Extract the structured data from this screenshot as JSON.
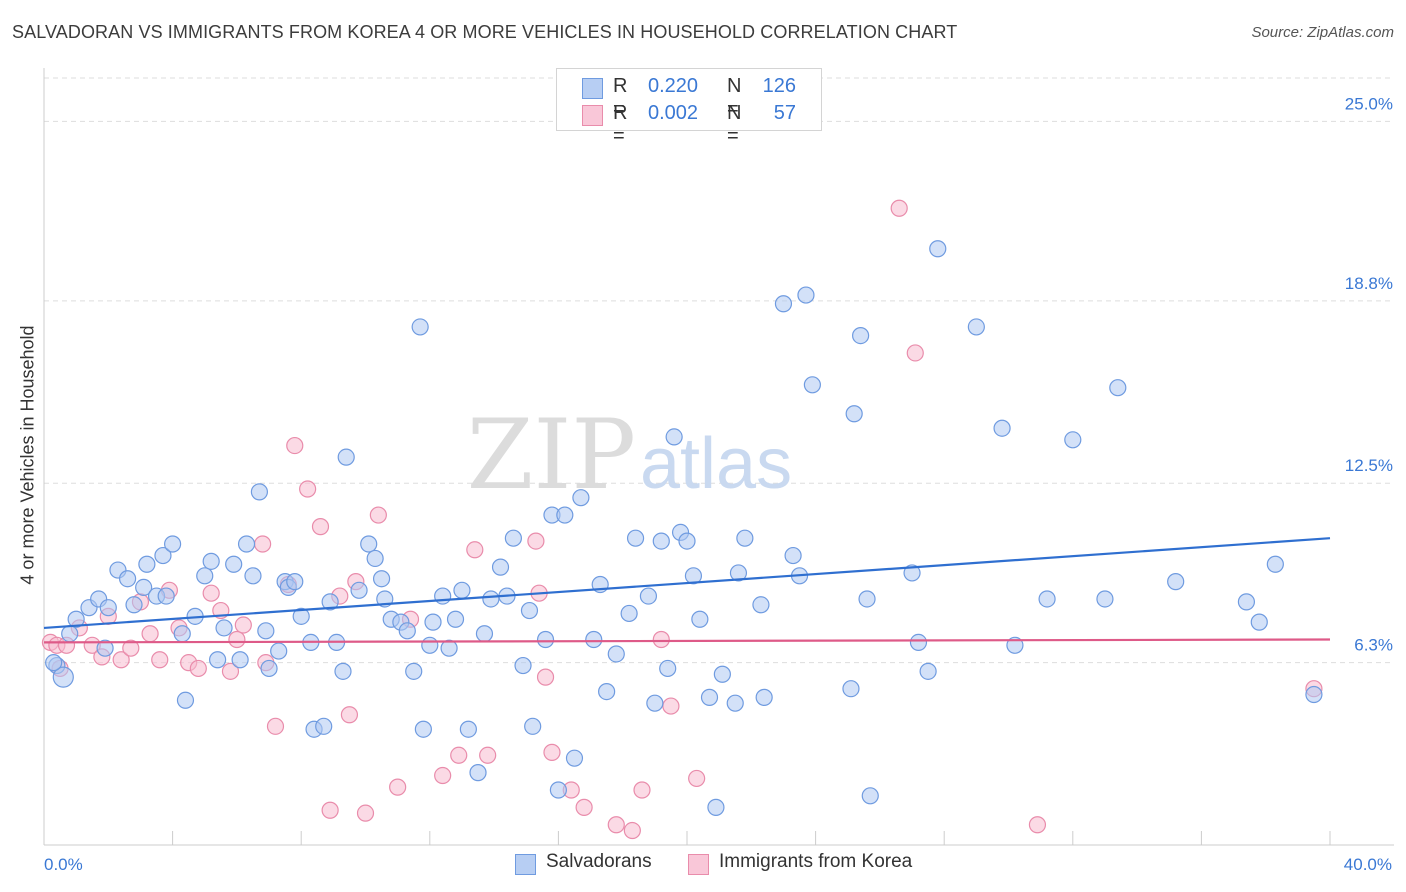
{
  "header": {
    "title": "SALVADORAN VS IMMIGRANTS FROM KOREA 4 OR MORE VEHICLES IN HOUSEHOLD CORRELATION CHART",
    "source": "Source: ZipAtlas.com"
  },
  "legend": {
    "r_label": "R =",
    "n_label": "N =",
    "salvadoran": {
      "r": "0.220",
      "n": "126"
    },
    "korea": {
      "r": "0.002",
      "n": "57"
    }
  },
  "watermark": {
    "zip": "ZIP",
    "atlas": "atlas"
  },
  "colors": {
    "salvadoran_fill": "#aec8f2",
    "salvadoran_stroke": "#6f9be0",
    "salvadoran_line": "#2f6fd0",
    "korea_fill": "#f7bcd0",
    "korea_stroke": "#e98cab",
    "korea_line": "#de5a88",
    "axis_text": "#3a78d4"
  },
  "chart_data": {
    "type": "scatter",
    "title": "SALVADORAN VS IMMIGRANTS FROM KOREA 4 OR MORE VEHICLES IN HOUSEHOLD CORRELATION CHART",
    "xlabel": "",
    "ylabel": "4 or more Vehicles in Household",
    "xlim": [
      0,
      40
    ],
    "ylim": [
      0,
      26.5
    ],
    "x_tick_labels": [
      {
        "value": 0,
        "label": "0.0%"
      },
      {
        "value": 40,
        "label": "40.0%"
      }
    ],
    "y_tick_labels": [
      {
        "value": 6.3,
        "label": "6.3%"
      },
      {
        "value": 12.5,
        "label": "12.5%"
      },
      {
        "value": 18.8,
        "label": "18.8%"
      },
      {
        "value": 25.0,
        "label": "25.0%"
      }
    ],
    "grid": true,
    "legend_position": "top-center",
    "series": [
      {
        "name": "Salvadorans",
        "r": 0.22,
        "n": 126,
        "trend": {
          "x": [
            0,
            40
          ],
          "y": [
            7.5,
            10.6
          ]
        },
        "points": [
          [
            0.4,
            6.2
          ],
          [
            0.6,
            5.8
          ],
          [
            0.3,
            6.3
          ],
          [
            0.8,
            7.3
          ],
          [
            1.0,
            7.8
          ],
          [
            1.4,
            8.2
          ],
          [
            1.7,
            8.5
          ],
          [
            1.9,
            6.8
          ],
          [
            2.0,
            8.2
          ],
          [
            2.3,
            9.5
          ],
          [
            2.6,
            9.2
          ],
          [
            2.8,
            8.3
          ],
          [
            3.1,
            8.9
          ],
          [
            3.2,
            9.7
          ],
          [
            3.5,
            8.6
          ],
          [
            3.7,
            10.0
          ],
          [
            3.8,
            8.6
          ],
          [
            4.0,
            10.4
          ],
          [
            4.3,
            7.3
          ],
          [
            4.4,
            5.0
          ],
          [
            4.7,
            7.9
          ],
          [
            5.0,
            9.3
          ],
          [
            5.2,
            9.8
          ],
          [
            5.4,
            6.4
          ],
          [
            5.6,
            7.5
          ],
          [
            5.9,
            9.7
          ],
          [
            6.1,
            6.4
          ],
          [
            6.3,
            10.4
          ],
          [
            6.5,
            9.3
          ],
          [
            6.7,
            12.2
          ],
          [
            6.9,
            7.4
          ],
          [
            7.0,
            6.1
          ],
          [
            7.3,
            6.7
          ],
          [
            7.5,
            9.1
          ],
          [
            7.6,
            8.9
          ],
          [
            7.8,
            9.1
          ],
          [
            8.0,
            7.9
          ],
          [
            8.3,
            7.0
          ],
          [
            8.4,
            4.0
          ],
          [
            8.7,
            4.1
          ],
          [
            8.9,
            8.4
          ],
          [
            9.1,
            7.0
          ],
          [
            9.3,
            6.0
          ],
          [
            9.4,
            13.4
          ],
          [
            9.8,
            8.8
          ],
          [
            10.1,
            10.4
          ],
          [
            10.3,
            9.9
          ],
          [
            10.5,
            9.2
          ],
          [
            10.6,
            8.5
          ],
          [
            10.8,
            7.8
          ],
          [
            11.1,
            7.7
          ],
          [
            11.3,
            7.4
          ],
          [
            11.5,
            6.0
          ],
          [
            11.7,
            17.9
          ],
          [
            11.8,
            4.0
          ],
          [
            12.0,
            6.9
          ],
          [
            12.1,
            7.7
          ],
          [
            12.4,
            8.6
          ],
          [
            12.6,
            6.8
          ],
          [
            12.8,
            7.8
          ],
          [
            13.0,
            8.8
          ],
          [
            13.2,
            4.0
          ],
          [
            13.5,
            2.5
          ],
          [
            13.7,
            7.3
          ],
          [
            13.9,
            8.5
          ],
          [
            14.2,
            9.6
          ],
          [
            14.4,
            8.6
          ],
          [
            14.6,
            10.6
          ],
          [
            14.9,
            6.2
          ],
          [
            15.1,
            8.1
          ],
          [
            15.2,
            4.1
          ],
          [
            15.6,
            7.1
          ],
          [
            15.8,
            11.4
          ],
          [
            16.0,
            1.9
          ],
          [
            16.2,
            11.4
          ],
          [
            16.5,
            3.0
          ],
          [
            16.7,
            12.0
          ],
          [
            17.1,
            7.1
          ],
          [
            17.3,
            9.0
          ],
          [
            17.5,
            5.3
          ],
          [
            17.8,
            6.6
          ],
          [
            18.2,
            8.0
          ],
          [
            18.4,
            10.6
          ],
          [
            18.8,
            8.6
          ],
          [
            19.0,
            4.9
          ],
          [
            19.2,
            10.5
          ],
          [
            19.4,
            6.1
          ],
          [
            19.6,
            14.1
          ],
          [
            19.8,
            10.8
          ],
          [
            20.0,
            10.5
          ],
          [
            20.2,
            9.3
          ],
          [
            20.4,
            7.8
          ],
          [
            20.7,
            5.1
          ],
          [
            20.9,
            1.3
          ],
          [
            21.1,
            5.9
          ],
          [
            21.5,
            4.9
          ],
          [
            21.6,
            9.4
          ],
          [
            21.8,
            10.6
          ],
          [
            22.3,
            8.3
          ],
          [
            22.4,
            5.1
          ],
          [
            23.0,
            18.7
          ],
          [
            23.3,
            10.0
          ],
          [
            23.5,
            9.3
          ],
          [
            23.7,
            19.0
          ],
          [
            23.9,
            15.9
          ],
          [
            25.1,
            5.4
          ],
          [
            25.2,
            14.9
          ],
          [
            25.4,
            17.6
          ],
          [
            25.6,
            8.5
          ],
          [
            25.7,
            1.7
          ],
          [
            27.0,
            9.4
          ],
          [
            27.2,
            7.0
          ],
          [
            27.5,
            6.0
          ],
          [
            27.8,
            20.6
          ],
          [
            29.0,
            17.9
          ],
          [
            29.8,
            14.4
          ],
          [
            30.2,
            6.9
          ],
          [
            31.2,
            8.5
          ],
          [
            32.0,
            14.0
          ],
          [
            33.0,
            8.5
          ],
          [
            33.4,
            15.8
          ],
          [
            35.2,
            9.1
          ],
          [
            37.4,
            8.4
          ],
          [
            37.8,
            7.7
          ],
          [
            38.3,
            9.7
          ],
          [
            39.5,
            5.2
          ]
        ]
      },
      {
        "name": "Immigrants from Korea",
        "r": 0.002,
        "n": 57,
        "trend": {
          "x": [
            0,
            40
          ],
          "y": [
            7.0,
            7.1
          ]
        },
        "points": [
          [
            0.2,
            7.0
          ],
          [
            0.4,
            6.9
          ],
          [
            0.5,
            6.1
          ],
          [
            0.7,
            6.9
          ],
          [
            1.1,
            7.5
          ],
          [
            1.5,
            6.9
          ],
          [
            1.8,
            6.5
          ],
          [
            2.0,
            7.9
          ],
          [
            2.4,
            6.4
          ],
          [
            2.7,
            6.8
          ],
          [
            3.0,
            8.4
          ],
          [
            3.3,
            7.3
          ],
          [
            3.6,
            6.4
          ],
          [
            3.9,
            8.8
          ],
          [
            4.2,
            7.5
          ],
          [
            4.5,
            6.3
          ],
          [
            4.8,
            6.1
          ],
          [
            5.2,
            8.7
          ],
          [
            5.5,
            8.1
          ],
          [
            5.8,
            6.0
          ],
          [
            6.0,
            7.1
          ],
          [
            6.2,
            7.6
          ],
          [
            6.8,
            10.4
          ],
          [
            6.9,
            6.3
          ],
          [
            7.2,
            4.1
          ],
          [
            7.6,
            9.0
          ],
          [
            7.8,
            13.8
          ],
          [
            8.2,
            12.3
          ],
          [
            8.6,
            11.0
          ],
          [
            8.9,
            1.2
          ],
          [
            9.2,
            8.6
          ],
          [
            9.5,
            4.5
          ],
          [
            9.7,
            9.1
          ],
          [
            10.0,
            1.1
          ],
          [
            10.4,
            11.4
          ],
          [
            11.0,
            2.0
          ],
          [
            11.4,
            7.8
          ],
          [
            12.4,
            2.4
          ],
          [
            12.9,
            3.1
          ],
          [
            13.4,
            10.2
          ],
          [
            13.8,
            3.1
          ],
          [
            15.3,
            10.5
          ],
          [
            15.4,
            8.7
          ],
          [
            15.6,
            5.8
          ],
          [
            15.8,
            3.2
          ],
          [
            16.4,
            1.9
          ],
          [
            16.8,
            1.3
          ],
          [
            17.8,
            0.7
          ],
          [
            18.3,
            0.5
          ],
          [
            18.6,
            1.9
          ],
          [
            19.2,
            7.1
          ],
          [
            19.5,
            4.8
          ],
          [
            20.3,
            2.3
          ],
          [
            26.6,
            22.0
          ],
          [
            27.1,
            17.0
          ],
          [
            30.9,
            0.7
          ],
          [
            39.5,
            5.4
          ]
        ]
      }
    ]
  }
}
